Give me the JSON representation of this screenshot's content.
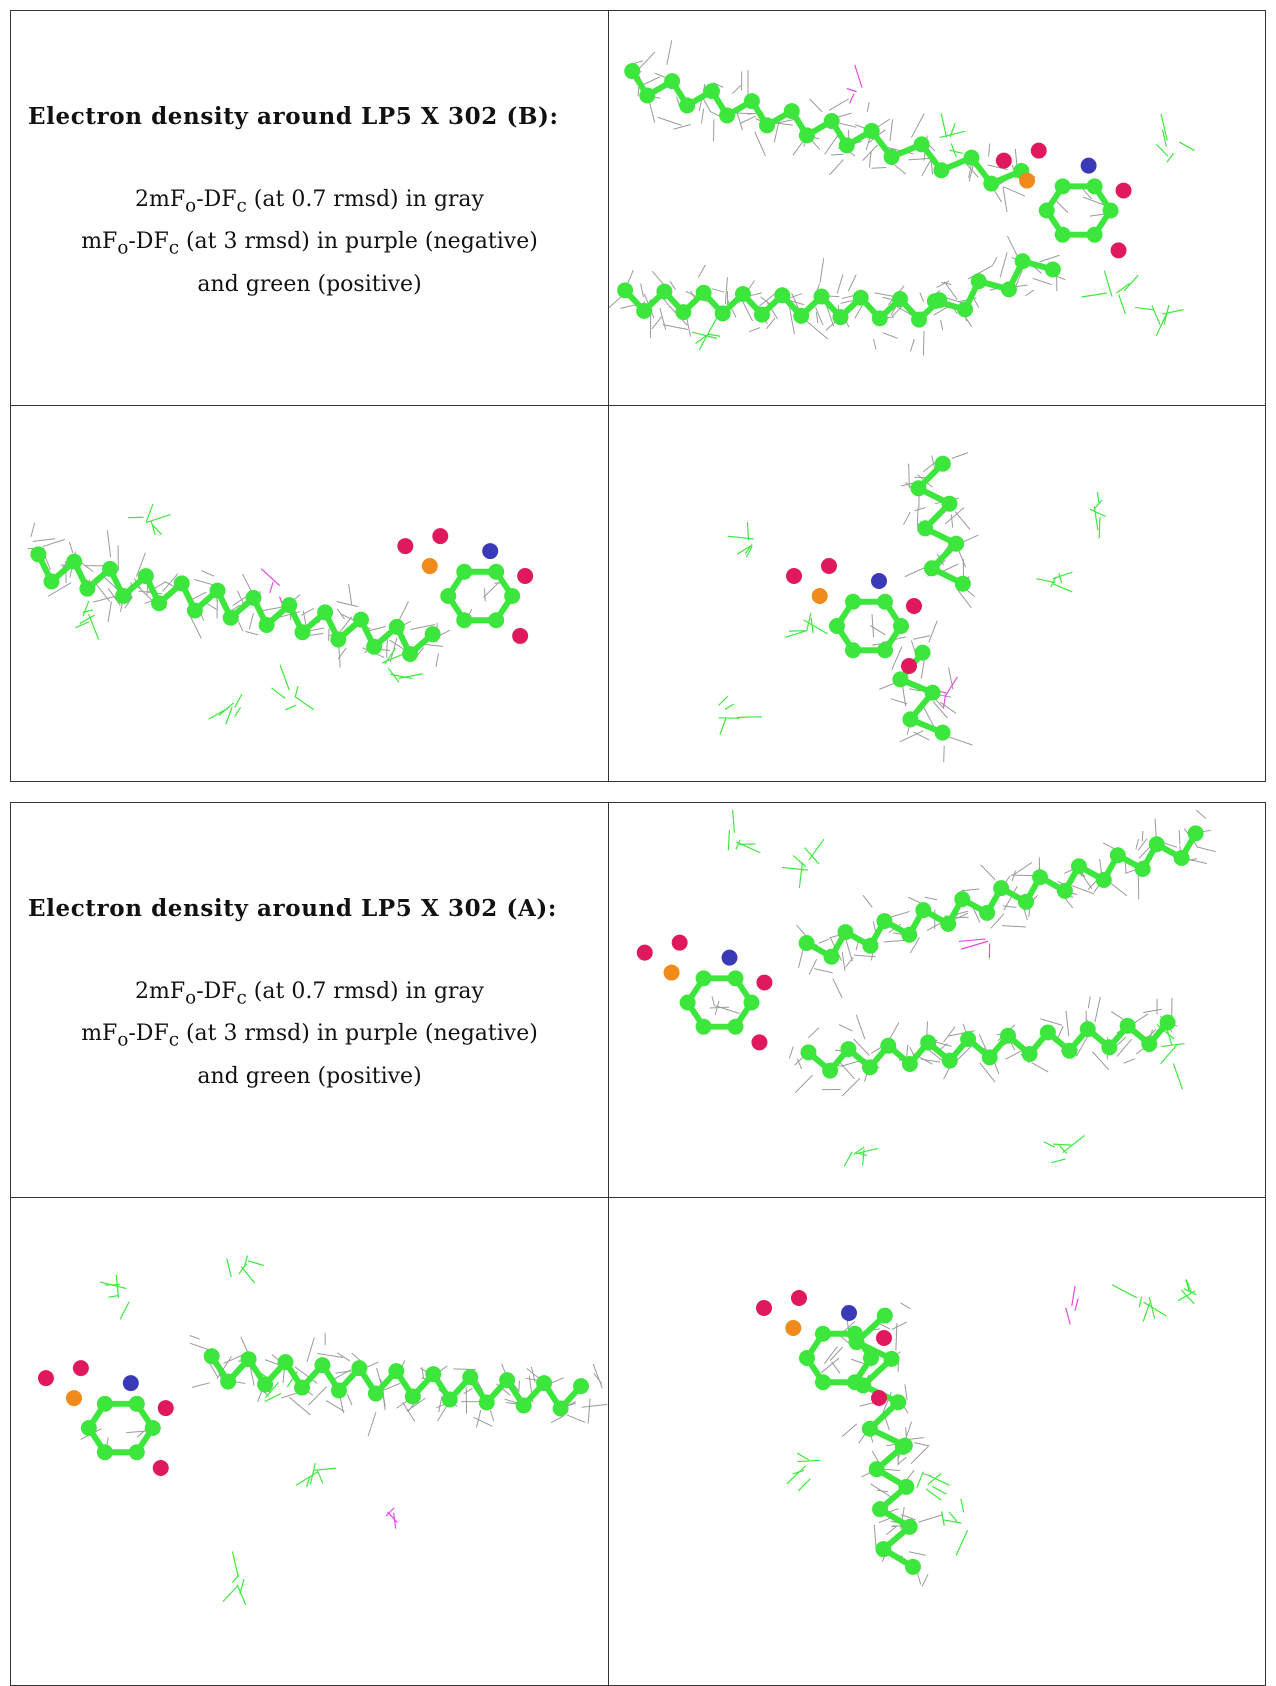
{
  "panels": [
    {
      "heading": "Electron density around LP5 X 302 (B):",
      "line1": "2mF",
      "line1_sub1": "o",
      "line1_mid": "-DF",
      "line1_sub2": "c",
      "line1_tail": " (at 0.7 rmsd) in gray",
      "line2": "mF",
      "line2_sub1": "o",
      "line2_mid": "-DF",
      "line2_sub2": "c",
      "line2_tail": " (at 3 rmsd) in purple (negative)",
      "line3": "and green (positive)"
    },
    {
      "heading": "Electron density around LP5 X 302 (A):",
      "line1": "2mF",
      "line1_sub1": "o",
      "line1_mid": "-DF",
      "line1_sub2": "c",
      "line1_tail": " (at 0.7 rmsd) in gray",
      "line2": "mF",
      "line2_sub1": "o",
      "line2_mid": "-DF",
      "line2_sub2": "c",
      "line2_tail": " (at 3 rmsd) in purple (negative)",
      "line3": "and green (positive)"
    }
  ],
  "colors": {
    "carbon": "#3ce63c",
    "oxygen": "#e0185e",
    "nitrogen": "#3a3ab8",
    "phosphorus": "#f08a1a",
    "density_2fofc": "#9a9a9a",
    "density_positive": "#3ee83e",
    "density_negative": "#e24ce2"
  }
}
